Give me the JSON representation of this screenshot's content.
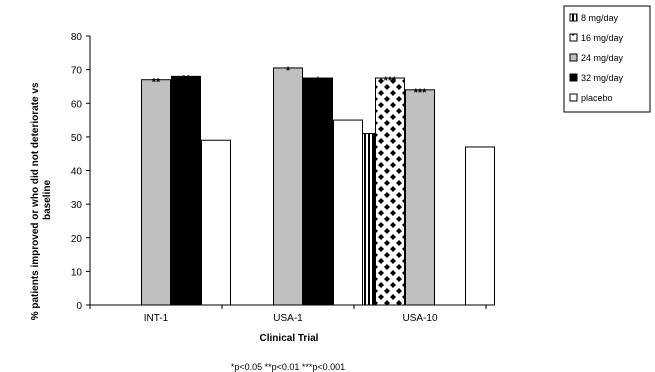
{
  "chart_data": {
    "type": "bar",
    "categories": [
      "INT-1",
      "USA-1",
      "USA-10"
    ],
    "series": [
      {
        "name": "8 mg/day",
        "color": "#ffffff",
        "pattern": "vertical-stripes",
        "values": [
          null,
          null,
          51
        ]
      },
      {
        "name": "16 mg/day",
        "color": "#ffffff",
        "pattern": "diamond-checker",
        "values": [
          null,
          null,
          67.5
        ]
      },
      {
        "name": "24 mg/day",
        "color": "#c0c0c0",
        "pattern": "solid",
        "values": [
          67,
          70.5,
          64
        ]
      },
      {
        "name": "32 mg/day",
        "color": "#000000",
        "pattern": "solid",
        "values": [
          68,
          67.5,
          null
        ]
      },
      {
        "name": "placebo",
        "color": "#ffffff",
        "pattern": "solid",
        "values": [
          49,
          55,
          47
        ]
      }
    ],
    "significance": [
      {
        "category": "INT-1",
        "series": "24 mg/day",
        "label": "**"
      },
      {
        "category": "INT-1",
        "series": "32 mg/day",
        "label": "**"
      },
      {
        "category": "USA-1",
        "series": "24 mg/day",
        "label": "*"
      },
      {
        "category": "USA-1",
        "series": "32 mg/day",
        "label": "*"
      },
      {
        "category": "USA-10",
        "series": "16 mg/day",
        "label": "***"
      },
      {
        "category": "USA-10",
        "series": "24 mg/day",
        "label": "***"
      }
    ],
    "title": "",
    "xlabel": "Clinical Trial",
    "ylabel": "% patients improved or who did not deteriorate vs baseline",
    "ylim": [
      0,
      80
    ],
    "yticks": [
      0,
      10,
      20,
      30,
      40,
      50,
      60,
      70,
      80
    ],
    "grid": false,
    "legend_position": "top-right",
    "footnote": "*p<0.05 **p<0.01 ***p<0.001"
  }
}
